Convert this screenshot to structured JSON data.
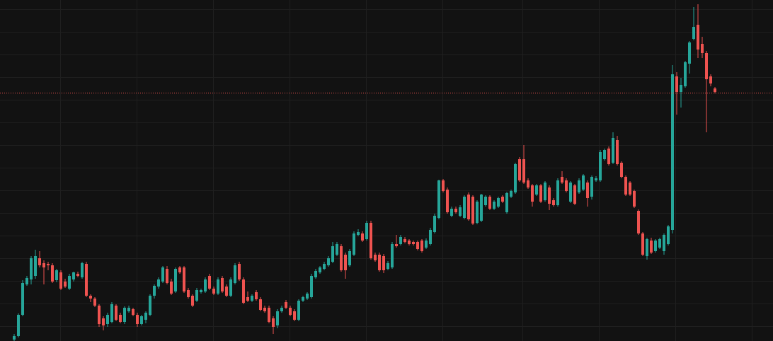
{
  "chart_data": {
    "type": "candlestick",
    "ylim": [
      0,
      482
    ],
    "yticks": [
      21,
      53,
      85,
      117,
      149,
      181,
      213,
      245,
      277,
      309,
      341,
      373,
      405,
      437,
      469
    ],
    "grid": true,
    "up_color": "#26a69a",
    "down_color": "#ef5350",
    "price_line": {
      "value": 351,
      "color": "#ef5350"
    },
    "candles": [
      [
        2,
        10,
        0,
        7
      ],
      [
        7,
        39,
        5,
        37
      ],
      [
        37,
        86,
        35,
        82
      ],
      [
        80,
        92,
        78,
        89
      ],
      [
        87,
        120,
        80,
        117
      ],
      [
        92,
        129,
        88,
        120
      ],
      [
        117,
        127,
        104,
        107
      ],
      [
        110,
        114,
        80,
        104
      ],
      [
        109,
        112,
        100,
        107
      ],
      [
        107,
        110,
        82,
        84
      ],
      [
        86,
        102,
        83,
        100
      ],
      [
        97,
        100,
        72,
        74
      ],
      [
        84,
        88,
        75,
        77
      ],
      [
        74,
        95,
        72,
        92
      ],
      [
        87,
        98,
        84,
        97
      ],
      [
        95,
        98,
        90,
        92
      ],
      [
        90,
        112,
        88,
        110
      ],
      [
        109,
        112,
        62,
        64
      ],
      [
        64,
        66,
        55,
        60
      ],
      [
        60,
        62,
        48,
        50
      ],
      [
        50,
        52,
        20,
        24
      ],
      [
        32,
        35,
        15,
        22
      ],
      [
        24,
        40,
        20,
        37
      ],
      [
        27,
        55,
        25,
        52
      ],
      [
        50,
        52,
        28,
        30
      ],
      [
        37,
        40,
        25,
        27
      ],
      [
        27,
        49,
        24,
        47
      ],
      [
        42,
        50,
        40,
        47
      ],
      [
        45,
        47,
        35,
        37
      ],
      [
        37,
        40,
        20,
        24
      ],
      [
        24,
        37,
        22,
        35
      ],
      [
        30,
        42,
        25,
        40
      ],
      [
        37,
        66,
        35,
        64
      ],
      [
        64,
        80,
        60,
        78
      ],
      [
        77,
        90,
        74,
        87
      ],
      [
        84,
        106,
        82,
        104
      ],
      [
        102,
        106,
        80,
        82
      ],
      [
        84,
        88,
        65,
        67
      ],
      [
        70,
        104,
        68,
        102
      ],
      [
        104,
        106,
        95,
        97
      ],
      [
        104,
        106,
        68,
        70
      ],
      [
        72,
        75,
        60,
        62
      ],
      [
        64,
        66,
        48,
        50
      ],
      [
        57,
        75,
        55,
        72
      ],
      [
        69,
        74,
        67,
        72
      ],
      [
        70,
        90,
        68,
        87
      ],
      [
        92,
        95,
        72,
        74
      ],
      [
        74,
        77,
        65,
        67
      ],
      [
        67,
        90,
        65,
        87
      ],
      [
        89,
        92,
        68,
        70
      ],
      [
        77,
        80,
        62,
        64
      ],
      [
        64,
        90,
        62,
        87
      ],
      [
        82,
        110,
        80,
        107
      ],
      [
        109,
        112,
        85,
        87
      ],
      [
        87,
        90,
        52,
        54
      ],
      [
        62,
        70,
        55,
        57
      ],
      [
        57,
        66,
        55,
        64
      ],
      [
        69,
        72,
        57,
        59
      ],
      [
        59,
        62,
        42,
        44
      ],
      [
        47,
        50,
        40,
        42
      ],
      [
        47,
        50,
        25,
        27
      ],
      [
        32,
        35,
        10,
        20
      ],
      [
        22,
        45,
        18,
        42
      ],
      [
        42,
        50,
        40,
        47
      ],
      [
        55,
        58,
        45,
        47
      ],
      [
        47,
        50,
        35,
        37
      ],
      [
        42,
        45,
        28,
        30
      ],
      [
        30,
        59,
        28,
        57
      ],
      [
        57,
        64,
        55,
        62
      ],
      [
        60,
        69,
        58,
        67
      ],
      [
        62,
        95,
        60,
        92
      ],
      [
        90,
        102,
        88,
        99
      ],
      [
        97,
        106,
        95,
        104
      ],
      [
        102,
        112,
        100,
        109
      ],
      [
        107,
        120,
        105,
        117
      ],
      [
        112,
        140,
        110,
        134
      ],
      [
        122,
        140,
        120,
        137
      ],
      [
        134,
        137,
        98,
        100
      ],
      [
        122,
        125,
        88,
        100
      ],
      [
        107,
        130,
        105,
        127
      ],
      [
        122,
        155,
        120,
        152
      ],
      [
        150,
        158,
        148,
        154
      ],
      [
        152,
        155,
        140,
        142
      ],
      [
        144,
        170,
        142,
        167
      ],
      [
        167,
        170,
        115,
        117
      ],
      [
        122,
        125,
        112,
        114
      ],
      [
        122,
        125,
        98,
        100
      ],
      [
        120,
        123,
        96,
        100
      ],
      [
        102,
        113,
        100,
        110
      ],
      [
        104,
        140,
        102,
        137
      ],
      [
        137,
        150,
        132,
        134
      ],
      [
        137,
        150,
        135,
        147
      ],
      [
        144,
        147,
        138,
        140
      ],
      [
        142,
        144,
        135,
        137
      ],
      [
        140,
        142,
        135,
        137
      ],
      [
        140,
        142,
        128,
        130
      ],
      [
        142,
        144,
        125,
        127
      ],
      [
        132,
        145,
        130,
        142
      ],
      [
        137,
        160,
        135,
        157
      ],
      [
        154,
        180,
        152,
        177
      ],
      [
        174,
        228,
        172,
        227
      ],
      [
        227,
        229,
        210,
        212
      ],
      [
        214,
        217,
        180,
        182
      ],
      [
        177,
        190,
        175,
        187
      ],
      [
        187,
        190,
        180,
        182
      ],
      [
        177,
        192,
        175,
        189
      ],
      [
        174,
        206,
        172,
        204
      ],
      [
        207,
        210,
        170,
        172
      ],
      [
        204,
        206,
        164,
        166
      ],
      [
        167,
        199,
        165,
        197
      ],
      [
        170,
        208,
        168,
        207
      ],
      [
        192,
        206,
        190,
        204
      ],
      [
        204,
        206,
        185,
        187
      ],
      [
        187,
        199,
        185,
        197
      ],
      [
        190,
        204,
        188,
        202
      ],
      [
        204,
        206,
        195,
        197
      ],
      [
        182,
        211,
        180,
        209
      ],
      [
        204,
        214,
        202,
        212
      ],
      [
        210,
        252,
        208,
        250
      ],
      [
        257,
        260,
        225,
        227
      ],
      [
        257,
        277,
        222,
        224
      ],
      [
        227,
        230,
        215,
        217
      ],
      [
        220,
        222,
        190,
        197
      ],
      [
        207,
        222,
        205,
        220
      ],
      [
        220,
        222,
        195,
        197
      ],
      [
        199,
        226,
        197,
        224
      ],
      [
        217,
        220,
        185,
        194
      ],
      [
        199,
        202,
        190,
        192
      ],
      [
        192,
        230,
        190,
        227
      ],
      [
        232,
        240,
        222,
        224
      ],
      [
        227,
        230,
        210,
        212
      ],
      [
        197,
        226,
        195,
        224
      ],
      [
        220,
        222,
        192,
        194
      ],
      [
        210,
        230,
        208,
        227
      ],
      [
        214,
        236,
        212,
        234
      ],
      [
        224,
        227,
        190,
        202
      ],
      [
        204,
        234,
        200,
        232
      ],
      [
        227,
        233,
        225,
        230
      ],
      [
        227,
        270,
        225,
        267
      ],
      [
        257,
        272,
        255,
        270
      ],
      [
        272,
        275,
        248,
        250
      ],
      [
        252,
        295,
        250,
        287
      ],
      [
        284,
        290,
        248,
        250
      ],
      [
        252,
        254,
        230,
        232
      ],
      [
        232,
        234,
        205,
        207
      ],
      [
        224,
        226,
        205,
        207
      ],
      [
        212,
        214,
        188,
        190
      ],
      [
        184,
        186,
        150,
        152
      ],
      [
        152,
        154,
        120,
        122
      ],
      [
        120,
        146,
        115,
        144
      ],
      [
        142,
        146,
        123,
        125
      ],
      [
        127,
        144,
        125,
        142
      ],
      [
        132,
        146,
        130,
        144
      ],
      [
        127,
        152,
        122,
        150
      ],
      [
        137,
        164,
        135,
        162
      ],
      [
        157,
        390,
        152,
        377
      ],
      [
        374,
        380,
        320,
        352
      ],
      [
        352,
        372,
        330,
        362
      ],
      [
        360,
        396,
        358,
        394
      ],
      [
        392,
        424,
        378,
        422
      ],
      [
        427,
        472,
        425,
        444
      ],
      [
        447,
        476,
        400,
        412
      ],
      [
        420,
        430,
        400,
        407
      ],
      [
        407,
        410,
        295,
        370
      ],
      [
        374,
        377,
        360,
        364
      ],
      [
        357,
        359,
        350,
        352
      ]
    ]
  }
}
